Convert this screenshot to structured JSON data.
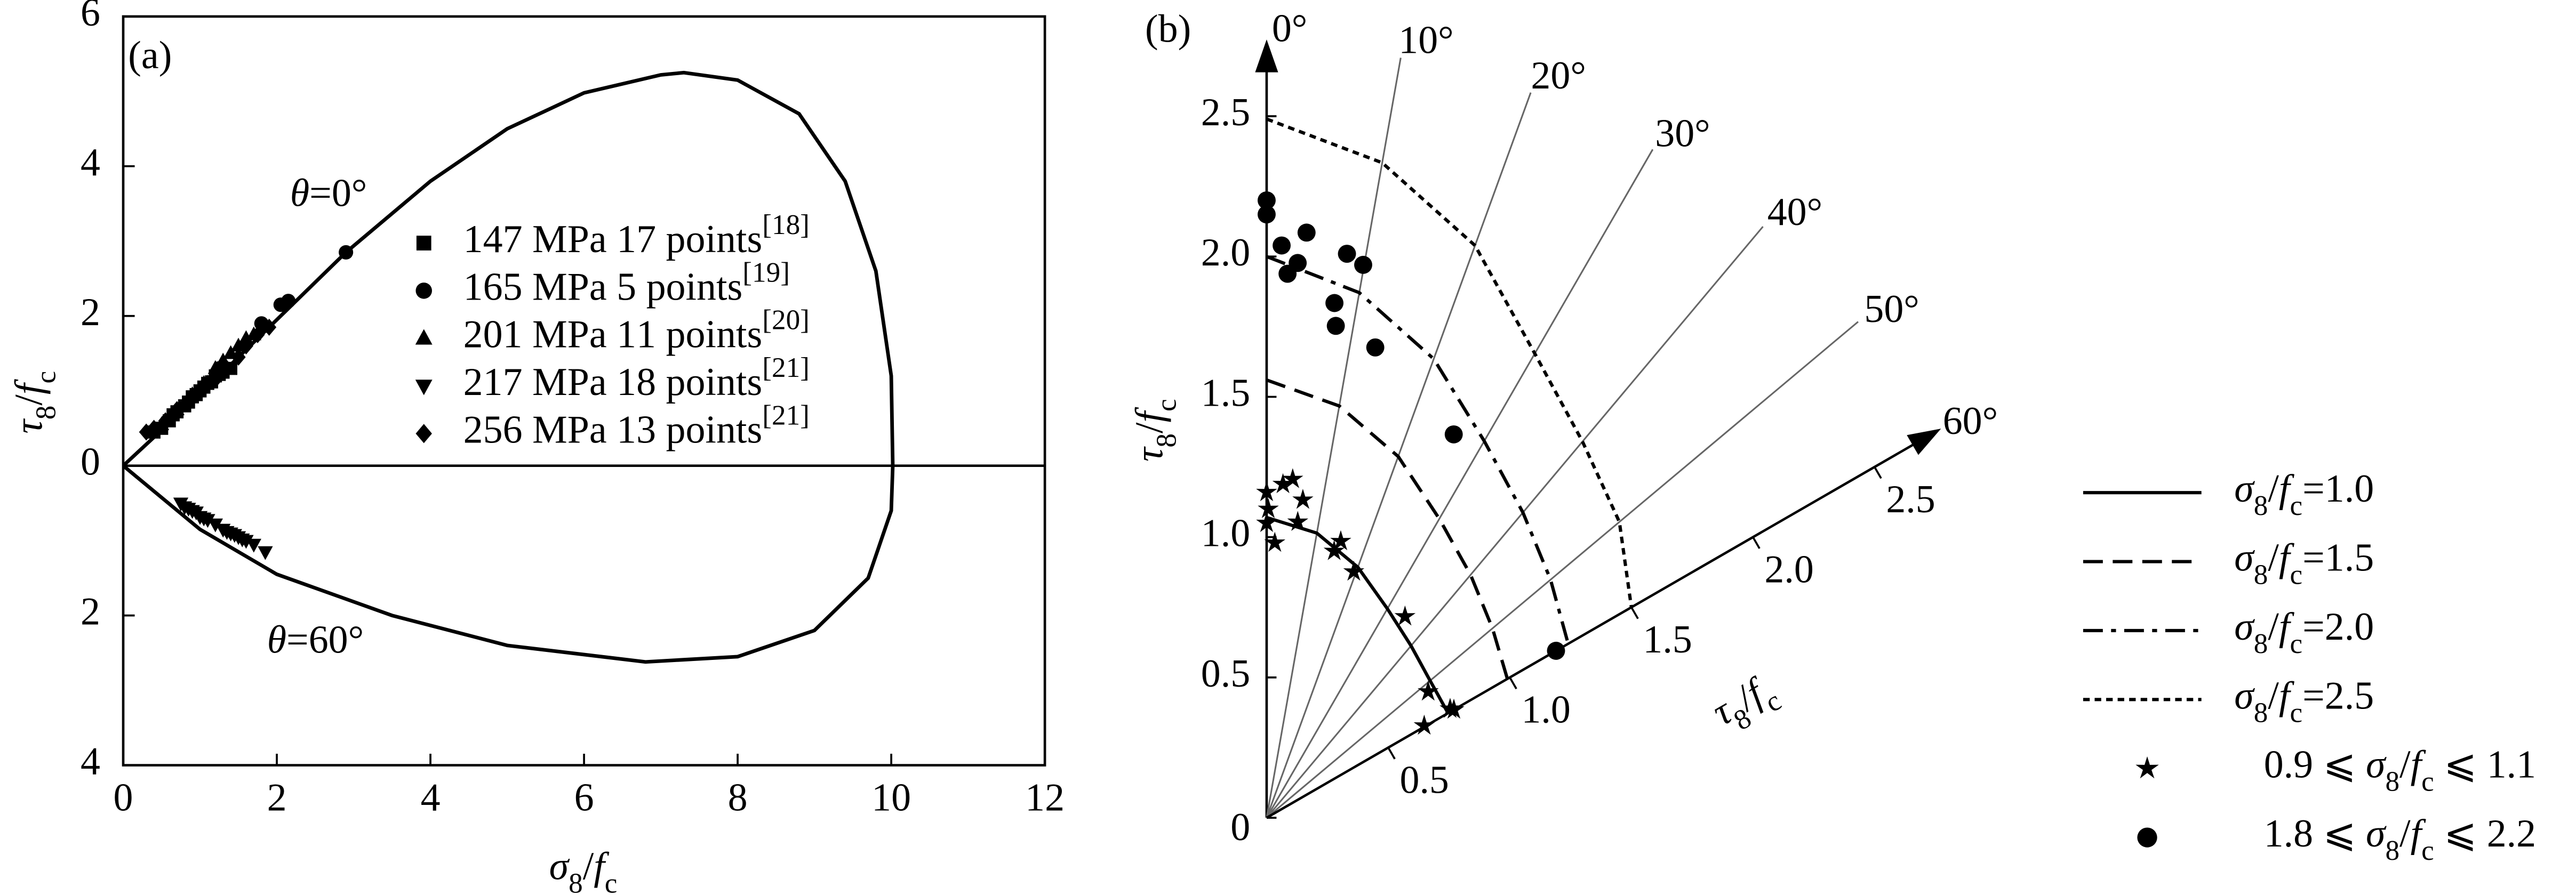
{
  "chart_data": [
    {
      "type": "scatter",
      "label": "(a)",
      "xlabel": "σ8/fc",
      "ylabel": "τ8/fc",
      "xlim": [
        0,
        12
      ],
      "ylim": [
        -4,
        6
      ],
      "xticks": [
        0,
        2,
        4,
        6,
        8,
        10,
        12
      ],
      "yticks": [
        {
          "value": -4,
          "label": "4"
        },
        {
          "value": -2,
          "label": "2"
        },
        0,
        2,
        4,
        6
      ],
      "annotations": [
        "θ=0°",
        "θ=60°"
      ],
      "curve": {
        "color": "#000000",
        "x": [
          0,
          1,
          2,
          2.9,
          4,
          5,
          6,
          7,
          7.3,
          8,
          8.8,
          9.4,
          9.8,
          10,
          10.02,
          10,
          9.7,
          9,
          8,
          6.8,
          5,
          3.5,
          2,
          1,
          0
        ],
        "y": [
          0,
          0.95,
          1.95,
          2.85,
          3.8,
          4.5,
          4.98,
          5.22,
          5.25,
          5.15,
          4.7,
          3.8,
          2.6,
          1.2,
          0,
          -0.6,
          -1.5,
          -2.2,
          -2.55,
          -2.62,
          -2.4,
          -2.0,
          -1.45,
          -0.85,
          0
        ]
      },
      "series": [
        {
          "name": "147 MPa 17 points[18]",
          "marker": "square",
          "color": "#000000",
          "x": [
            0.4,
            0.5,
            0.6,
            0.65,
            0.7,
            0.8,
            0.85,
            0.9,
            0.95,
            1.0,
            1.05,
            1.1,
            1.15,
            1.2,
            1.25,
            1.3,
            1.4
          ],
          "y": [
            0.45,
            0.5,
            0.6,
            0.68,
            0.72,
            0.8,
            0.85,
            0.92,
            0.95,
            1.0,
            1.05,
            1.1,
            1.12,
            1.2,
            1.22,
            1.25,
            1.3
          ]
        },
        {
          "name": "165 MPa 5 points[19]",
          "marker": "circle",
          "color": "#000000",
          "x": [
            2.9,
            2.15,
            2.05,
            1.8,
            1.25
          ],
          "y": [
            2.85,
            2.2,
            2.15,
            1.9,
            1.3
          ]
        },
        {
          "name": "201 MPa 11 points[20]",
          "marker": "triangle-up",
          "color": "#000000",
          "x": [
            0.5,
            0.7,
            0.9,
            1.05,
            1.2,
            1.3,
            1.4,
            1.5,
            1.6,
            1.7,
            1.8
          ],
          "y": [
            0.55,
            0.75,
            0.95,
            1.1,
            1.3,
            1.4,
            1.5,
            1.6,
            1.7,
            1.75,
            1.85
          ]
        },
        {
          "name": "217 MPa 18 points[21]",
          "marker": "triangle-down",
          "color": "#000000",
          "x": [
            0.75,
            0.8,
            0.85,
            0.9,
            0.95,
            1.0,
            1.05,
            1.1,
            1.2,
            1.3,
            1.35,
            1.4,
            1.45,
            1.5,
            1.55,
            1.6,
            1.7,
            1.85
          ],
          "y": [
            -0.5,
            -0.55,
            -0.57,
            -0.6,
            -0.62,
            -0.68,
            -0.7,
            -0.72,
            -0.78,
            -0.85,
            -0.88,
            -0.9,
            -0.92,
            -0.95,
            -0.98,
            -1.0,
            -1.05,
            -1.15
          ]
        },
        {
          "name": "256 MPa 13 points[21]",
          "marker": "diamond",
          "color": "#000000",
          "x": [
            0.3,
            0.4,
            0.55,
            0.7,
            0.85,
            1.0,
            1.1,
            1.2,
            1.35,
            1.5,
            1.6,
            1.75,
            1.9
          ],
          "y": [
            0.45,
            0.5,
            0.6,
            0.75,
            0.85,
            1.0,
            1.1,
            1.15,
            1.3,
            1.45,
            1.6,
            1.75,
            1.85
          ]
        }
      ]
    },
    {
      "type": "polar",
      "label": "(b)",
      "rlabel": "τ8/fc",
      "rlim": [
        0,
        2.75
      ],
      "rticks": [
        0,
        0.5,
        {
          "value": 1,
          "label": "1.0"
        },
        1.5,
        {
          "value": 2,
          "label": "2.0"
        },
        2.5
      ],
      "r60ticks": [
        0.5,
        {
          "value": 1,
          "label": "1.0"
        },
        1.5,
        {
          "value": 2,
          "label": "2.0"
        },
        2.5
      ],
      "thetaticks": [
        {
          "value": 0,
          "label": "0°"
        },
        {
          "value": 10,
          "label": "10°"
        },
        {
          "value": 20,
          "label": "20°"
        },
        {
          "value": 30,
          "label": "30°"
        },
        {
          "value": 40,
          "label": "40°"
        },
        {
          "value": 50,
          "label": "50°"
        },
        {
          "value": 60,
          "label": "60°"
        }
      ],
      "series": [
        {
          "name": "σ8/fc=1.0",
          "style": "solid",
          "color": "#000000",
          "theta": [
            0,
            10,
            20,
            30,
            40,
            50,
            60
          ],
          "r": [
            1.07,
            1.03,
            0.95,
            0.86,
            0.8,
            0.76,
            0.746
          ]
        },
        {
          "name": "σ8/fc=1.5",
          "style": "dashed",
          "color": "#000000",
          "theta": [
            0,
            10,
            20,
            30,
            40,
            50,
            60
          ],
          "r": [
            1.56,
            1.49,
            1.37,
            1.23,
            1.13,
            1.05,
            0.99
          ]
        },
        {
          "name": "σ8/fc=2.0",
          "style": "dashdot",
          "color": "#000000",
          "theta": [
            0,
            10,
            20,
            30,
            40,
            50,
            60
          ],
          "r": [
            2.0,
            1.9,
            1.74,
            1.55,
            1.42,
            1.32,
            1.24
          ]
        },
        {
          "name": "σ8/fc=2.5",
          "style": "dotted",
          "color": "#000000",
          "theta": [
            0,
            10,
            20,
            30,
            40,
            50,
            60
          ],
          "r": [
            2.49,
            2.37,
            2.17,
            1.91,
            1.75,
            1.64,
            1.5
          ]
        },
        {
          "name": "0.9 ⩽ σ8/fc ⩽ 1.1",
          "marker": "star",
          "color": "#000000",
          "theta": [
            0,
            0.3,
            1.7,
            0,
            2.8,
            4.4,
            6.5,
            6,
            14.2,
            15,
            19.5,
            34.5,
            52,
            59.7,
            59.3,
            60
          ],
          "r": [
            1.16,
            1.1,
            0.98,
            1.05,
            1.19,
            1.21,
            1.14,
            1.06,
            0.98,
            1.02,
            0.93,
            0.87,
            0.73,
            0.65,
            0.76,
            0.77
          ]
        },
        {
          "name": "1.8 ⩽ σ8/fc ⩽ 2.2",
          "marker": "circle",
          "color": "#000000",
          "theta": [
            0,
            0,
            1.5,
            2.2,
            3.2,
            3.9,
            8.1,
            9.9,
            7.5,
            8,
            13,
            26,
            60
          ],
          "r": [
            2.2,
            2.15,
            2.04,
            1.94,
            1.98,
            2.09,
            2.03,
            2.0,
            1.85,
            1.77,
            1.72,
            1.52,
            1.19
          ]
        }
      ]
    }
  ]
}
